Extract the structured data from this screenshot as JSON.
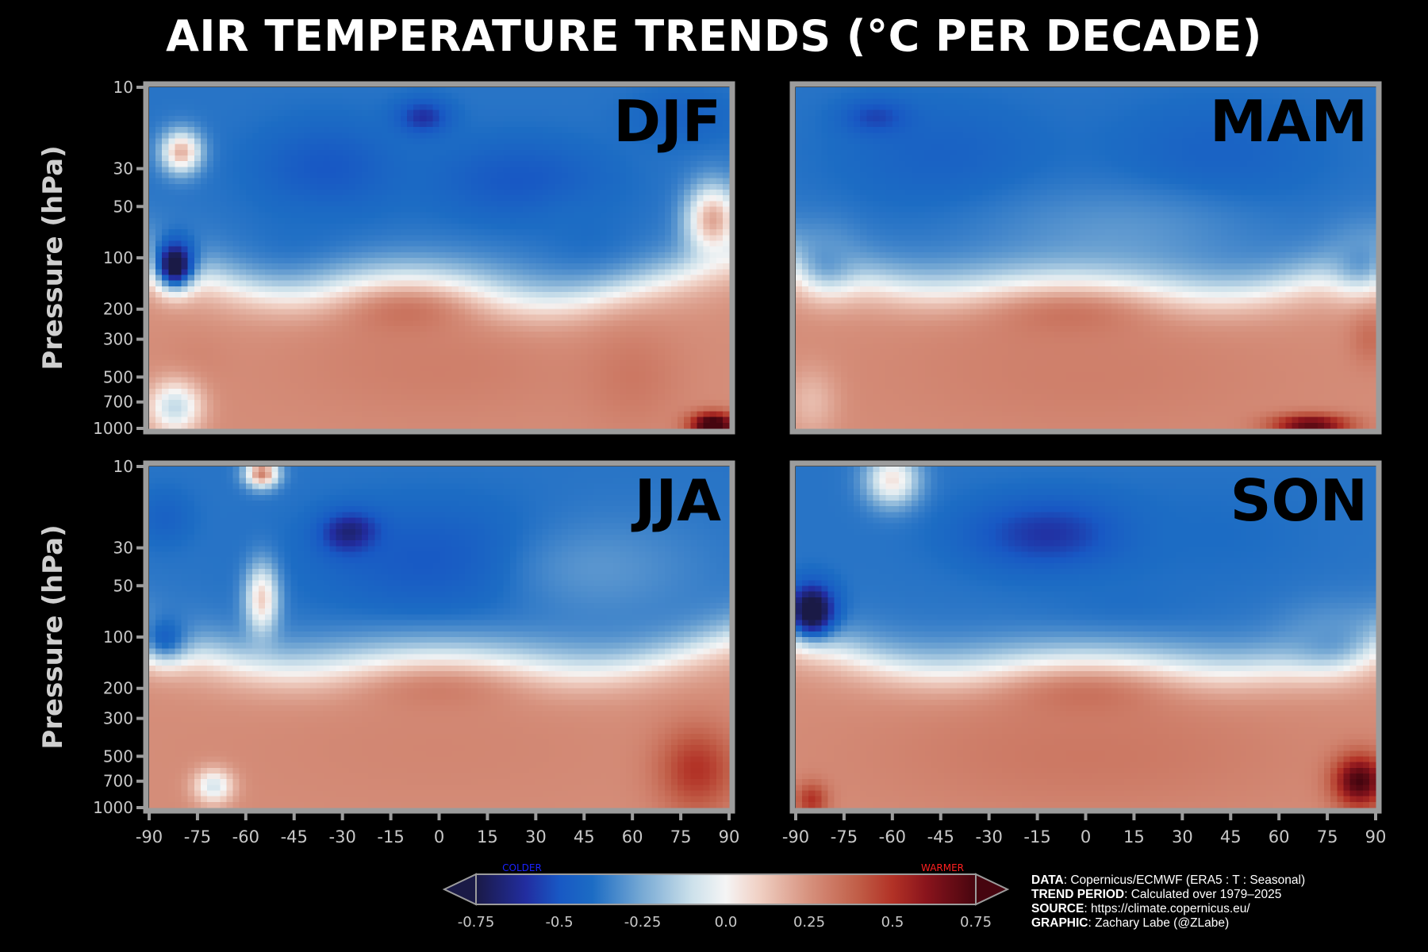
{
  "title": "AIR TEMPERATURE TRENDS (°C PER DECADE)",
  "chart_data": {
    "type": "heatmap",
    "ylabel": "Pressure (hPa)",
    "y_scale": "log, inverted",
    "y_ticks": [
      10,
      30,
      50,
      100,
      200,
      300,
      500,
      700,
      1000
    ],
    "x_ticks": [
      -90,
      -75,
      -60,
      -45,
      -30,
      -15,
      0,
      15,
      30,
      45,
      60,
      75,
      90
    ],
    "xlim": [
      -90,
      90
    ],
    "ylim": [
      1000,
      10
    ],
    "panels": [
      {
        "label": "DJF",
        "features": [
          {
            "lat": -82,
            "p": 110,
            "val": -0.85,
            "slat": 6,
            "sp": 0.14
          },
          {
            "lat": -80,
            "p": 24,
            "val": 0.18,
            "slat": 6,
            "sp": 0.12
          },
          {
            "lat": -5,
            "p": 15,
            "val": -0.6,
            "slat": 8,
            "sp": 0.1
          },
          {
            "lat": -35,
            "p": 30,
            "val": -0.5,
            "slat": 20,
            "sp": 0.25
          },
          {
            "lat": 25,
            "p": 35,
            "val": -0.5,
            "slat": 25,
            "sp": 0.22
          },
          {
            "lat": 75,
            "p": 15,
            "val": -0.45,
            "slat": 15,
            "sp": 0.15
          },
          {
            "lat": -40,
            "p": 80,
            "val": -0.4,
            "slat": 18,
            "sp": 0.2
          },
          {
            "lat": 45,
            "p": 70,
            "val": -0.4,
            "slat": 15,
            "sp": 0.2
          },
          {
            "lat": 85,
            "p": 60,
            "val": 0.2,
            "slat": 8,
            "sp": 0.2
          },
          {
            "lat": -10,
            "p": 220,
            "val": 0.35,
            "slat": 30,
            "sp": 0.25
          },
          {
            "lat": 0,
            "p": 450,
            "val": 0.3,
            "slat": 45,
            "sp": 0.3
          },
          {
            "lat": -75,
            "p": 400,
            "val": 0.28,
            "slat": 10,
            "sp": 0.15
          },
          {
            "lat": -82,
            "p": 750,
            "val": -0.12,
            "slat": 8,
            "sp": 0.15
          },
          {
            "lat": 60,
            "p": 500,
            "val": 0.32,
            "slat": 15,
            "sp": 0.3
          },
          {
            "lat": 85,
            "p": 950,
            "val": 0.85,
            "slat": 7,
            "sp": 0.07
          }
        ]
      },
      {
        "label": "MAM",
        "features": [
          {
            "lat": -45,
            "p": 25,
            "val": -0.45,
            "slat": 30,
            "sp": 0.3
          },
          {
            "lat": 40,
            "p": 25,
            "val": -0.45,
            "slat": 30,
            "sp": 0.3
          },
          {
            "lat": -65,
            "p": 15,
            "val": -0.55,
            "slat": 10,
            "sp": 0.1
          },
          {
            "lat": 10,
            "p": 70,
            "val": -0.3,
            "slat": 40,
            "sp": 0.25
          },
          {
            "lat": -80,
            "p": 100,
            "val": -0.3,
            "slat": 10,
            "sp": 0.2
          },
          {
            "lat": 85,
            "p": 100,
            "val": -0.3,
            "slat": 10,
            "sp": 0.2
          },
          {
            "lat": -5,
            "p": 230,
            "val": 0.35,
            "slat": 40,
            "sp": 0.25
          },
          {
            "lat": 0,
            "p": 500,
            "val": 0.3,
            "slat": 60,
            "sp": 0.35
          },
          {
            "lat": 88,
            "p": 300,
            "val": 0.35,
            "slat": 6,
            "sp": 0.15
          },
          {
            "lat": 70,
            "p": 950,
            "val": 0.7,
            "slat": 12,
            "sp": 0.06
          },
          {
            "lat": -85,
            "p": 700,
            "val": 0.15,
            "slat": 8,
            "sp": 0.2
          }
        ]
      },
      {
        "label": "JJA",
        "features": [
          {
            "lat": -27,
            "p": 25,
            "val": -0.8,
            "slat": 9,
            "sp": 0.12
          },
          {
            "lat": -55,
            "p": 11,
            "val": 0.3,
            "slat": 5,
            "sp": 0.08
          },
          {
            "lat": 0,
            "p": 35,
            "val": -0.5,
            "slat": 35,
            "sp": 0.3
          },
          {
            "lat": 50,
            "p": 40,
            "val": -0.3,
            "slat": 30,
            "sp": 0.3
          },
          {
            "lat": -85,
            "p": 20,
            "val": -0.45,
            "slat": 8,
            "sp": 0.15
          },
          {
            "lat": -85,
            "p": 100,
            "val": -0.45,
            "slat": 8,
            "sp": 0.15
          },
          {
            "lat": -55,
            "p": 60,
            "val": 0.1,
            "slat": 5,
            "sp": 0.2
          },
          {
            "lat": 0,
            "p": 220,
            "val": 0.32,
            "slat": 40,
            "sp": 0.25
          },
          {
            "lat": 0,
            "p": 450,
            "val": 0.28,
            "slat": 60,
            "sp": 0.35
          },
          {
            "lat": 80,
            "p": 600,
            "val": 0.5,
            "slat": 12,
            "sp": 0.25
          },
          {
            "lat": -70,
            "p": 750,
            "val": -0.08,
            "slat": 6,
            "sp": 0.1
          }
        ]
      },
      {
        "label": "SON",
        "features": [
          {
            "lat": -85,
            "p": 70,
            "val": -0.85,
            "slat": 7,
            "sp": 0.15
          },
          {
            "lat": -10,
            "p": 25,
            "val": -0.6,
            "slat": 25,
            "sp": 0.2
          },
          {
            "lat": 40,
            "p": 25,
            "val": -0.4,
            "slat": 30,
            "sp": 0.3
          },
          {
            "lat": -60,
            "p": 12,
            "val": 0.05,
            "slat": 8,
            "sp": 0.15
          },
          {
            "lat": 10,
            "p": 70,
            "val": -0.4,
            "slat": 25,
            "sp": 0.2
          },
          {
            "lat": 75,
            "p": 100,
            "val": -0.3,
            "slat": 15,
            "sp": 0.2
          },
          {
            "lat": 0,
            "p": 230,
            "val": 0.35,
            "slat": 40,
            "sp": 0.25
          },
          {
            "lat": 0,
            "p": 500,
            "val": 0.32,
            "slat": 65,
            "sp": 0.35
          },
          {
            "lat": 85,
            "p": 700,
            "val": 0.75,
            "slat": 8,
            "sp": 0.15
          },
          {
            "lat": -85,
            "p": 900,
            "val": 0.5,
            "slat": 5,
            "sp": 0.1
          }
        ]
      }
    ],
    "colorbar": {
      "ticks": [
        "-0.75",
        "-0.5",
        "-0.25",
        "0.0",
        "0.25",
        "0.5",
        "0.75"
      ],
      "range": [
        -0.75,
        0.75
      ],
      "extend": "both",
      "left_label": "COLDER",
      "right_label": "WARMER",
      "left_label_color": "#1a22ff",
      "right_label_color": "#ff2020"
    },
    "colors": {
      "background": "#000000",
      "frame": "#9c9c9c",
      "tick_label": "#c8c8c8",
      "axis_label": "#cfcfcf",
      "panel_label": "#000000"
    }
  },
  "credits": [
    {
      "key": "DATA",
      "text": ": Copernicus/ECMWF (ERA5 : T : Seasonal)"
    },
    {
      "key": "TREND PERIOD",
      "text": ": Calculated over 1979–2025"
    },
    {
      "key": "SOURCE",
      "text": ": https://climate.copernicus.eu/"
    },
    {
      "key": "GRAPHIC",
      "text": ": Zachary Labe (@ZLabe)"
    }
  ]
}
